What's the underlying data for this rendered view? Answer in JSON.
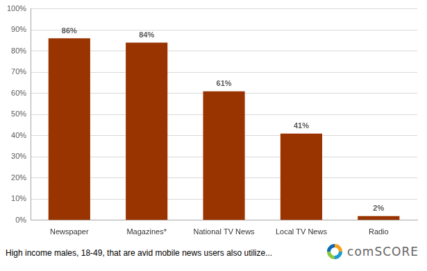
{
  "chart_data": {
    "type": "bar",
    "categories": [
      "Newspaper",
      "Magazines*",
      "National TV News",
      "Local TV News",
      "Radio"
    ],
    "values": [
      86,
      84,
      61,
      41,
      2
    ],
    "value_labels": [
      "86%",
      "84%",
      "61%",
      "41%",
      "2%"
    ],
    "data_labels": true,
    "color": "#993300",
    "ylim": [
      0,
      100
    ],
    "yticks": [
      {
        "value": 0,
        "label": "0%"
      },
      {
        "value": 10,
        "label": "10%"
      },
      {
        "value": 20,
        "label": "20%"
      },
      {
        "value": 30,
        "label": "30%"
      },
      {
        "value": 40,
        "label": "40%"
      },
      {
        "value": 50,
        "label": "50%"
      },
      {
        "value": 60,
        "label": "60%"
      },
      {
        "value": 70,
        "label": "70%"
      },
      {
        "value": 80,
        "label": "80%"
      },
      {
        "value": 90,
        "label": "90%"
      },
      {
        "value": 100,
        "label": "100%"
      }
    ],
    "grid": true,
    "caption": "High income males, 18-49, that are avid mobile news users also utilize...",
    "logo": "comSCORE"
  }
}
